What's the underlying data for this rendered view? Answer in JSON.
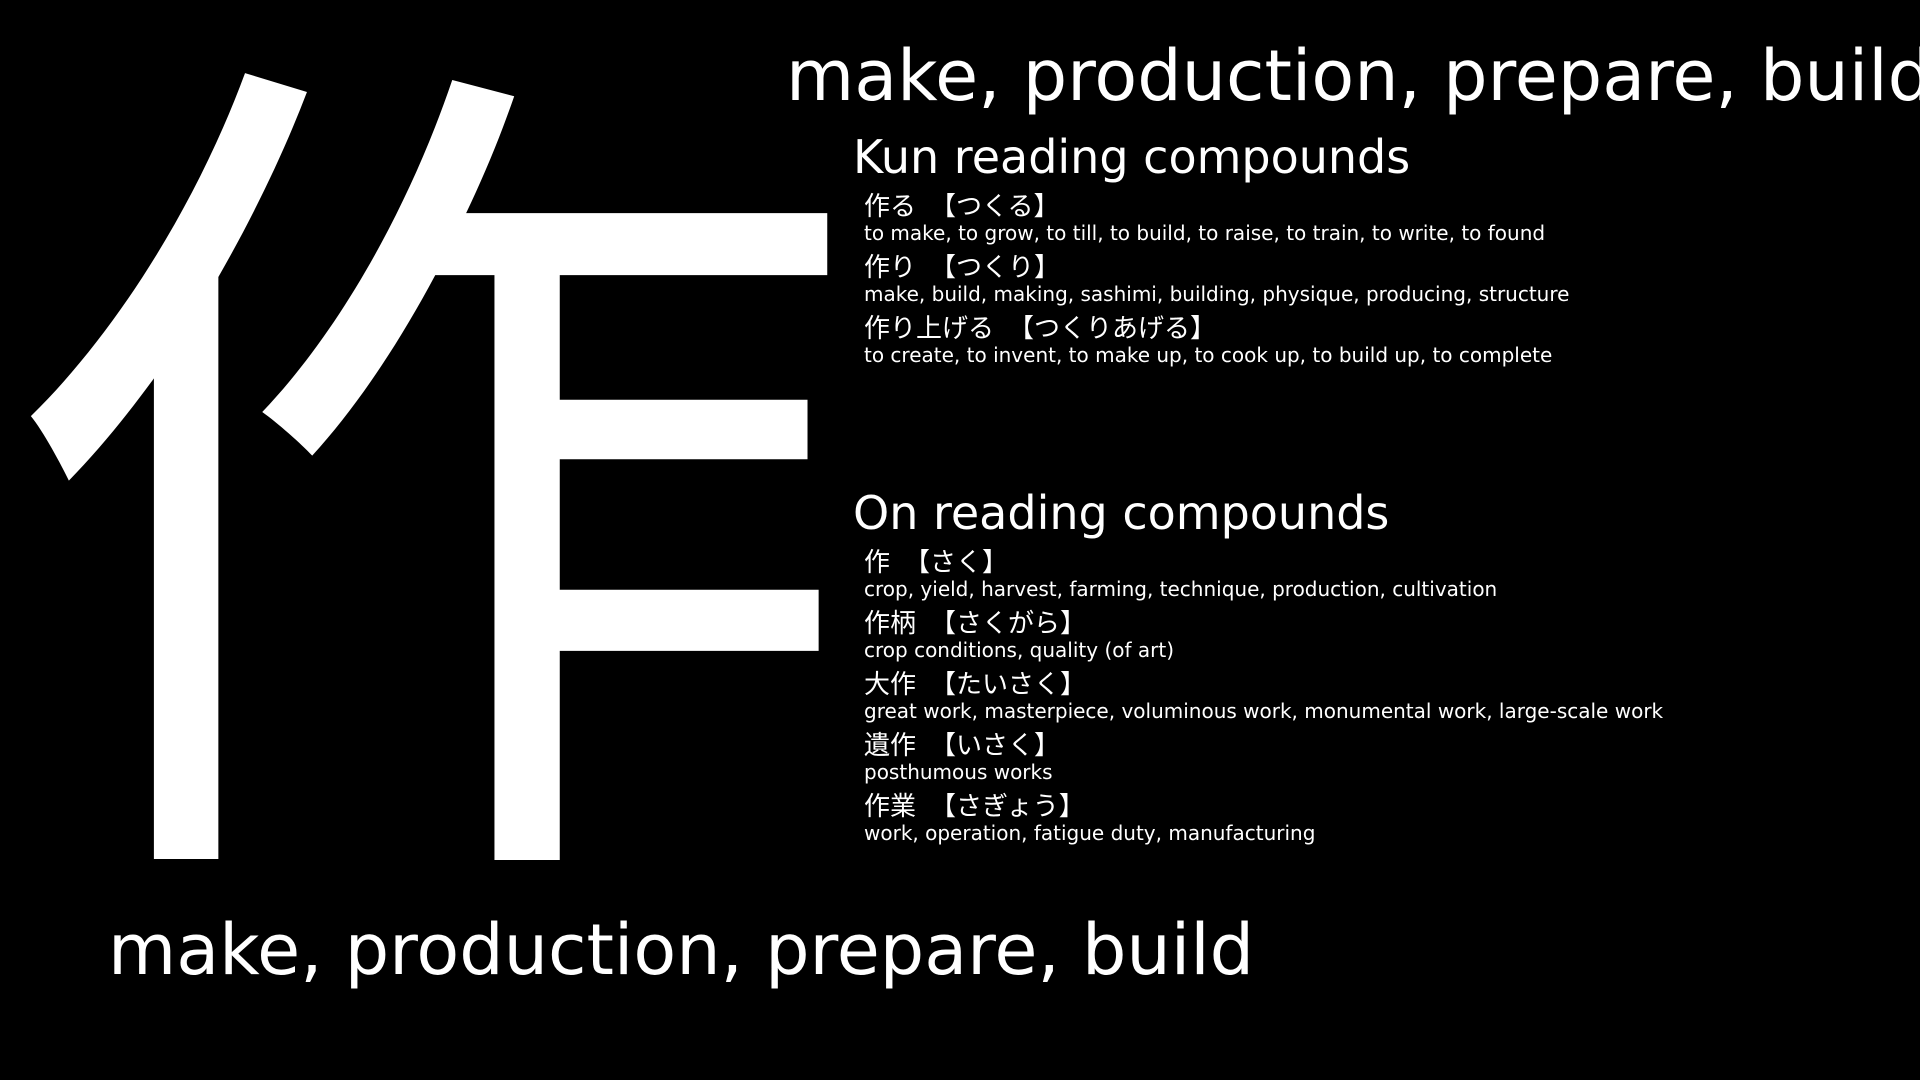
{
  "kanji": "作",
  "meaning": "make, production, prepare, build",
  "kun": {
    "title": "Kun reading compounds",
    "entries": [
      {
        "word": "作る",
        "reading": "【つくる】",
        "gloss": "to make, to grow, to till, to build, to raise, to train, to write, to found"
      },
      {
        "word": "作り",
        "reading": "【つくり】",
        "gloss": "make, build, making, sashimi, building, physique, producing, structure"
      },
      {
        "word": "作り上げる",
        "reading": "【つくりあげる】",
        "gloss": "to create, to invent, to make up, to cook up, to build up, to complete"
      }
    ]
  },
  "on": {
    "title": "On reading compounds",
    "entries": [
      {
        "word": "作",
        "reading": "【さく】",
        "gloss": "crop, yield, harvest, farming, technique, production, cultivation"
      },
      {
        "word": "作柄",
        "reading": "【さくがら】",
        "gloss": "crop conditions, quality (of art)"
      },
      {
        "word": "大作",
        "reading": "【たいさく】",
        "gloss": "great work, masterpiece, voluminous work, monumental work, large-scale work"
      },
      {
        "word": "遺作",
        "reading": "【いさく】",
        "gloss": "posthumous works"
      },
      {
        "word": "作業",
        "reading": "【さぎょう】",
        "gloss": "work, operation, fatigue duty, manufacturing"
      }
    ]
  }
}
